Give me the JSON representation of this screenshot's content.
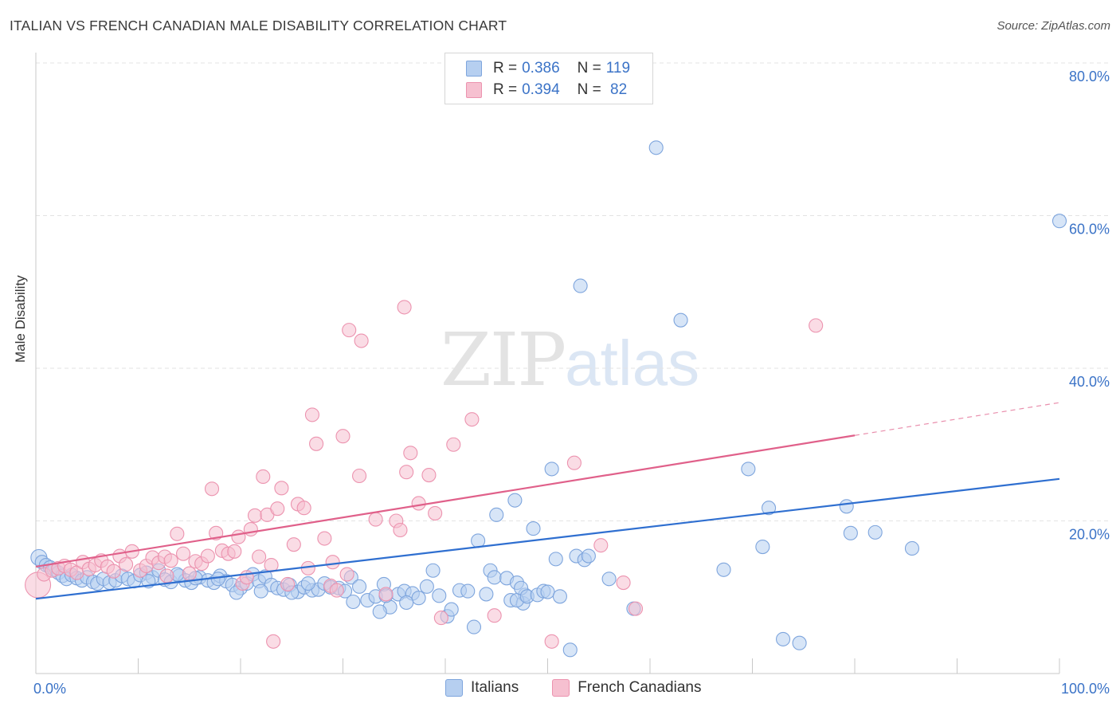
{
  "title": "ITALIAN VS FRENCH CANADIAN MALE DISABILITY CORRELATION CHART",
  "source": "Source: ZipAtlas.com",
  "watermark": {
    "zip": "ZIP",
    "atlas": "atlas"
  },
  "legend_top": [
    {
      "r_label": "R =",
      "r_value": "0.386",
      "n_label": "N =",
      "n_value": "119"
    },
    {
      "r_label": "R =",
      "r_value": "0.394",
      "n_label": "N =",
      "n_value": " 82"
    }
  ],
  "colors": {
    "italians_fill": "#b6cff0",
    "italians_stroke": "#7ea5dd",
    "italians_line": "#2f6fd0",
    "french_fill": "#f6c0d0",
    "french_stroke": "#ec93af",
    "french_line": "#e0608a",
    "tick_label": "#3b73c7",
    "grid": "#e3e3e3"
  },
  "chart_data": {
    "type": "scatter",
    "ylabel": "Male Disability",
    "xlim": [
      0,
      100
    ],
    "ylim": [
      0,
      80
    ],
    "x_tick_labels": [
      {
        "x": 0,
        "label": "0.0%"
      },
      {
        "x": 100,
        "label": "100.0%"
      }
    ],
    "y_tick_labels": [
      {
        "y": 20,
        "label": "20.0%"
      },
      {
        "y": 40,
        "label": "40.0%"
      },
      {
        "y": 60,
        "label": "60.0%"
      },
      {
        "y": 80,
        "label": "80.0%"
      }
    ],
    "grid": true,
    "legend_position": "bottom",
    "series": [
      {
        "name": "Italians",
        "r": 0.386,
        "n": 119,
        "trend": {
          "x0": 0,
          "y0": 9.8,
          "x1": 100,
          "y1": 25.5
        },
        "points": [
          [
            0.3,
            15.2
          ],
          [
            0.6,
            14.6
          ],
          [
            1.0,
            14.2
          ],
          [
            1.4,
            13.9
          ],
          [
            1.8,
            13.6
          ],
          [
            2.2,
            13.2
          ],
          [
            2.6,
            12.8
          ],
          [
            3.0,
            12.4
          ],
          [
            3.5,
            12.9
          ],
          [
            4.0,
            12.5
          ],
          [
            4.5,
            12.2
          ],
          [
            5.0,
            12.6
          ],
          [
            5.6,
            12.0
          ],
          [
            6.0,
            11.8
          ],
          [
            6.6,
            12.4
          ],
          [
            7.2,
            11.9
          ],
          [
            7.8,
            12.2
          ],
          [
            8.4,
            12.8
          ],
          [
            9.0,
            12.4
          ],
          [
            9.6,
            12.1
          ],
          [
            10.2,
            12.9
          ],
          [
            10.8,
            13.2
          ],
          [
            11.4,
            12.6
          ],
          [
            12.0,
            13.5
          ],
          [
            12.6,
            12.3
          ],
          [
            13.2,
            12.0
          ],
          [
            14.0,
            12.8
          ],
          [
            14.6,
            12.2
          ],
          [
            15.2,
            11.9
          ],
          [
            16.0,
            12.6
          ],
          [
            16.8,
            12.2
          ],
          [
            17.4,
            11.9
          ],
          [
            18.0,
            12.8
          ],
          [
            18.6,
            12.1
          ],
          [
            19.2,
            11.6
          ],
          [
            20.0,
            11.2
          ],
          [
            20.6,
            11.8
          ],
          [
            21.2,
            13.0
          ],
          [
            21.8,
            12.1
          ],
          [
            22.4,
            12.7
          ],
          [
            23.0,
            11.6
          ],
          [
            23.6,
            11.2
          ],
          [
            24.2,
            11.0
          ],
          [
            24.8,
            11.6
          ],
          [
            25.6,
            10.7
          ],
          [
            26.2,
            11.3
          ],
          [
            27.0,
            10.9
          ],
          [
            27.6,
            11.0
          ],
          [
            28.2,
            11.8
          ],
          [
            28.8,
            11.3
          ],
          [
            29.6,
            11.2
          ],
          [
            30.2,
            10.8
          ],
          [
            30.8,
            12.6
          ],
          [
            31.6,
            11.4
          ],
          [
            32.4,
            9.6
          ],
          [
            33.2,
            10.1
          ],
          [
            34.0,
            11.7
          ],
          [
            34.6,
            8.7
          ],
          [
            35.4,
            10.4
          ],
          [
            36.0,
            10.8
          ],
          [
            36.8,
            10.5
          ],
          [
            37.4,
            9.9
          ],
          [
            38.2,
            11.4
          ],
          [
            38.8,
            13.5
          ],
          [
            39.4,
            10.2
          ],
          [
            40.2,
            7.5
          ],
          [
            40.6,
            8.4
          ],
          [
            41.4,
            10.9
          ],
          [
            42.2,
            10.8
          ],
          [
            42.8,
            6.1
          ],
          [
            43.2,
            17.4
          ],
          [
            44.0,
            10.4
          ],
          [
            44.4,
            13.5
          ],
          [
            44.8,
            12.6
          ],
          [
            45.0,
            20.8
          ],
          [
            46.0,
            12.5
          ],
          [
            46.4,
            9.6
          ],
          [
            46.8,
            22.7
          ],
          [
            47.6,
            9.2
          ],
          [
            47.8,
            10.3
          ],
          [
            47.0,
            11.9
          ],
          [
            47.0,
            9.6
          ],
          [
            47.4,
            11.2
          ],
          [
            48.0,
            10.1
          ],
          [
            48.6,
            19.0
          ],
          [
            49.0,
            10.3
          ],
          [
            49.6,
            10.8
          ],
          [
            50.0,
            10.7
          ],
          [
            50.4,
            26.8
          ],
          [
            50.8,
            15.0
          ],
          [
            51.2,
            10.1
          ],
          [
            52.2,
            3.1
          ],
          [
            52.8,
            15.4
          ],
          [
            53.2,
            50.8
          ],
          [
            53.6,
            14.9
          ],
          [
            54.0,
            15.4
          ],
          [
            56.0,
            12.4
          ],
          [
            58.4,
            8.5
          ],
          [
            60.6,
            68.9
          ],
          [
            63.0,
            46.3
          ],
          [
            67.2,
            13.6
          ],
          [
            69.6,
            26.8
          ],
          [
            71.0,
            16.6
          ],
          [
            71.6,
            21.7
          ],
          [
            73.0,
            4.5
          ],
          [
            74.6,
            4.0
          ],
          [
            79.2,
            21.9
          ],
          [
            79.6,
            18.4
          ],
          [
            82.0,
            18.5
          ],
          [
            85.6,
            16.4
          ],
          [
            100.0,
            59.3
          ],
          [
            34.2,
            10.2
          ],
          [
            36.2,
            9.3
          ],
          [
            33.6,
            8.1
          ],
          [
            31.0,
            9.4
          ],
          [
            25.0,
            10.6
          ],
          [
            26.6,
            11.8
          ],
          [
            22.0,
            10.8
          ],
          [
            19.6,
            10.6
          ],
          [
            17.8,
            12.4
          ],
          [
            15.6,
            12.5
          ],
          [
            13.8,
            13.0
          ],
          [
            11.0,
            12.1
          ]
        ]
      },
      {
        "name": "French Canadians",
        "r": 0.394,
        "n": 82,
        "trend": {
          "x0": 0,
          "y0": 14.0,
          "x1": 80,
          "y1": 31.2,
          "dash_to_x": 100,
          "dash_to_y": 35.5
        },
        "points": [
          [
            0.2,
            11.6
          ],
          [
            0.8,
            13.0
          ],
          [
            1.6,
            13.5
          ],
          [
            2.2,
            13.8
          ],
          [
            2.8,
            14.1
          ],
          [
            3.4,
            13.6
          ],
          [
            4.0,
            13.2
          ],
          [
            4.6,
            14.6
          ],
          [
            5.2,
            13.7
          ],
          [
            5.8,
            14.2
          ],
          [
            6.4,
            14.8
          ],
          [
            7.0,
            14.0
          ],
          [
            7.6,
            13.4
          ],
          [
            8.2,
            15.4
          ],
          [
            8.8,
            14.3
          ],
          [
            9.4,
            16.0
          ],
          [
            10.2,
            13.5
          ],
          [
            10.8,
            14.1
          ],
          [
            11.4,
            15.2
          ],
          [
            12.0,
            14.5
          ],
          [
            12.6,
            15.3
          ],
          [
            13.2,
            14.8
          ],
          [
            13.8,
            18.3
          ],
          [
            14.4,
            15.7
          ],
          [
            15.0,
            13.1
          ],
          [
            15.6,
            14.7
          ],
          [
            16.2,
            14.4
          ],
          [
            16.8,
            15.4
          ],
          [
            17.2,
            24.2
          ],
          [
            17.6,
            18.4
          ],
          [
            18.2,
            16.1
          ],
          [
            18.8,
            15.7
          ],
          [
            19.4,
            16.0
          ],
          [
            19.8,
            17.9
          ],
          [
            20.2,
            11.8
          ],
          [
            21.0,
            18.9
          ],
          [
            21.4,
            20.7
          ],
          [
            21.8,
            15.3
          ],
          [
            22.2,
            25.8
          ],
          [
            22.6,
            20.8
          ],
          [
            23.2,
            4.2
          ],
          [
            23.6,
            21.6
          ],
          [
            24.0,
            24.3
          ],
          [
            24.6,
            11.7
          ],
          [
            25.2,
            16.9
          ],
          [
            25.6,
            22.2
          ],
          [
            26.2,
            21.7
          ],
          [
            27.0,
            33.9
          ],
          [
            27.4,
            30.1
          ],
          [
            28.2,
            17.7
          ],
          [
            28.8,
            11.5
          ],
          [
            29.4,
            10.9
          ],
          [
            30.0,
            31.1
          ],
          [
            30.6,
            45.0
          ],
          [
            31.6,
            25.9
          ],
          [
            31.8,
            43.6
          ],
          [
            33.2,
            20.2
          ],
          [
            34.2,
            10.4
          ],
          [
            35.2,
            20.0
          ],
          [
            35.6,
            18.8
          ],
          [
            36.0,
            48.0
          ],
          [
            36.2,
            26.4
          ],
          [
            36.6,
            28.9
          ],
          [
            37.4,
            22.3
          ],
          [
            38.4,
            26.0
          ],
          [
            39.0,
            21.0
          ],
          [
            39.6,
            7.3
          ],
          [
            40.8,
            30.0
          ],
          [
            42.6,
            33.3
          ],
          [
            44.8,
            7.6
          ],
          [
            50.4,
            4.2
          ],
          [
            52.6,
            27.6
          ],
          [
            55.2,
            16.8
          ],
          [
            57.4,
            11.9
          ],
          [
            58.6,
            8.5
          ],
          [
            76.2,
            45.6
          ],
          [
            29.0,
            14.6
          ],
          [
            30.4,
            13.0
          ],
          [
            26.6,
            13.8
          ],
          [
            23.0,
            14.2
          ],
          [
            20.6,
            12.6
          ],
          [
            12.8,
            12.8
          ]
        ]
      }
    ]
  }
}
